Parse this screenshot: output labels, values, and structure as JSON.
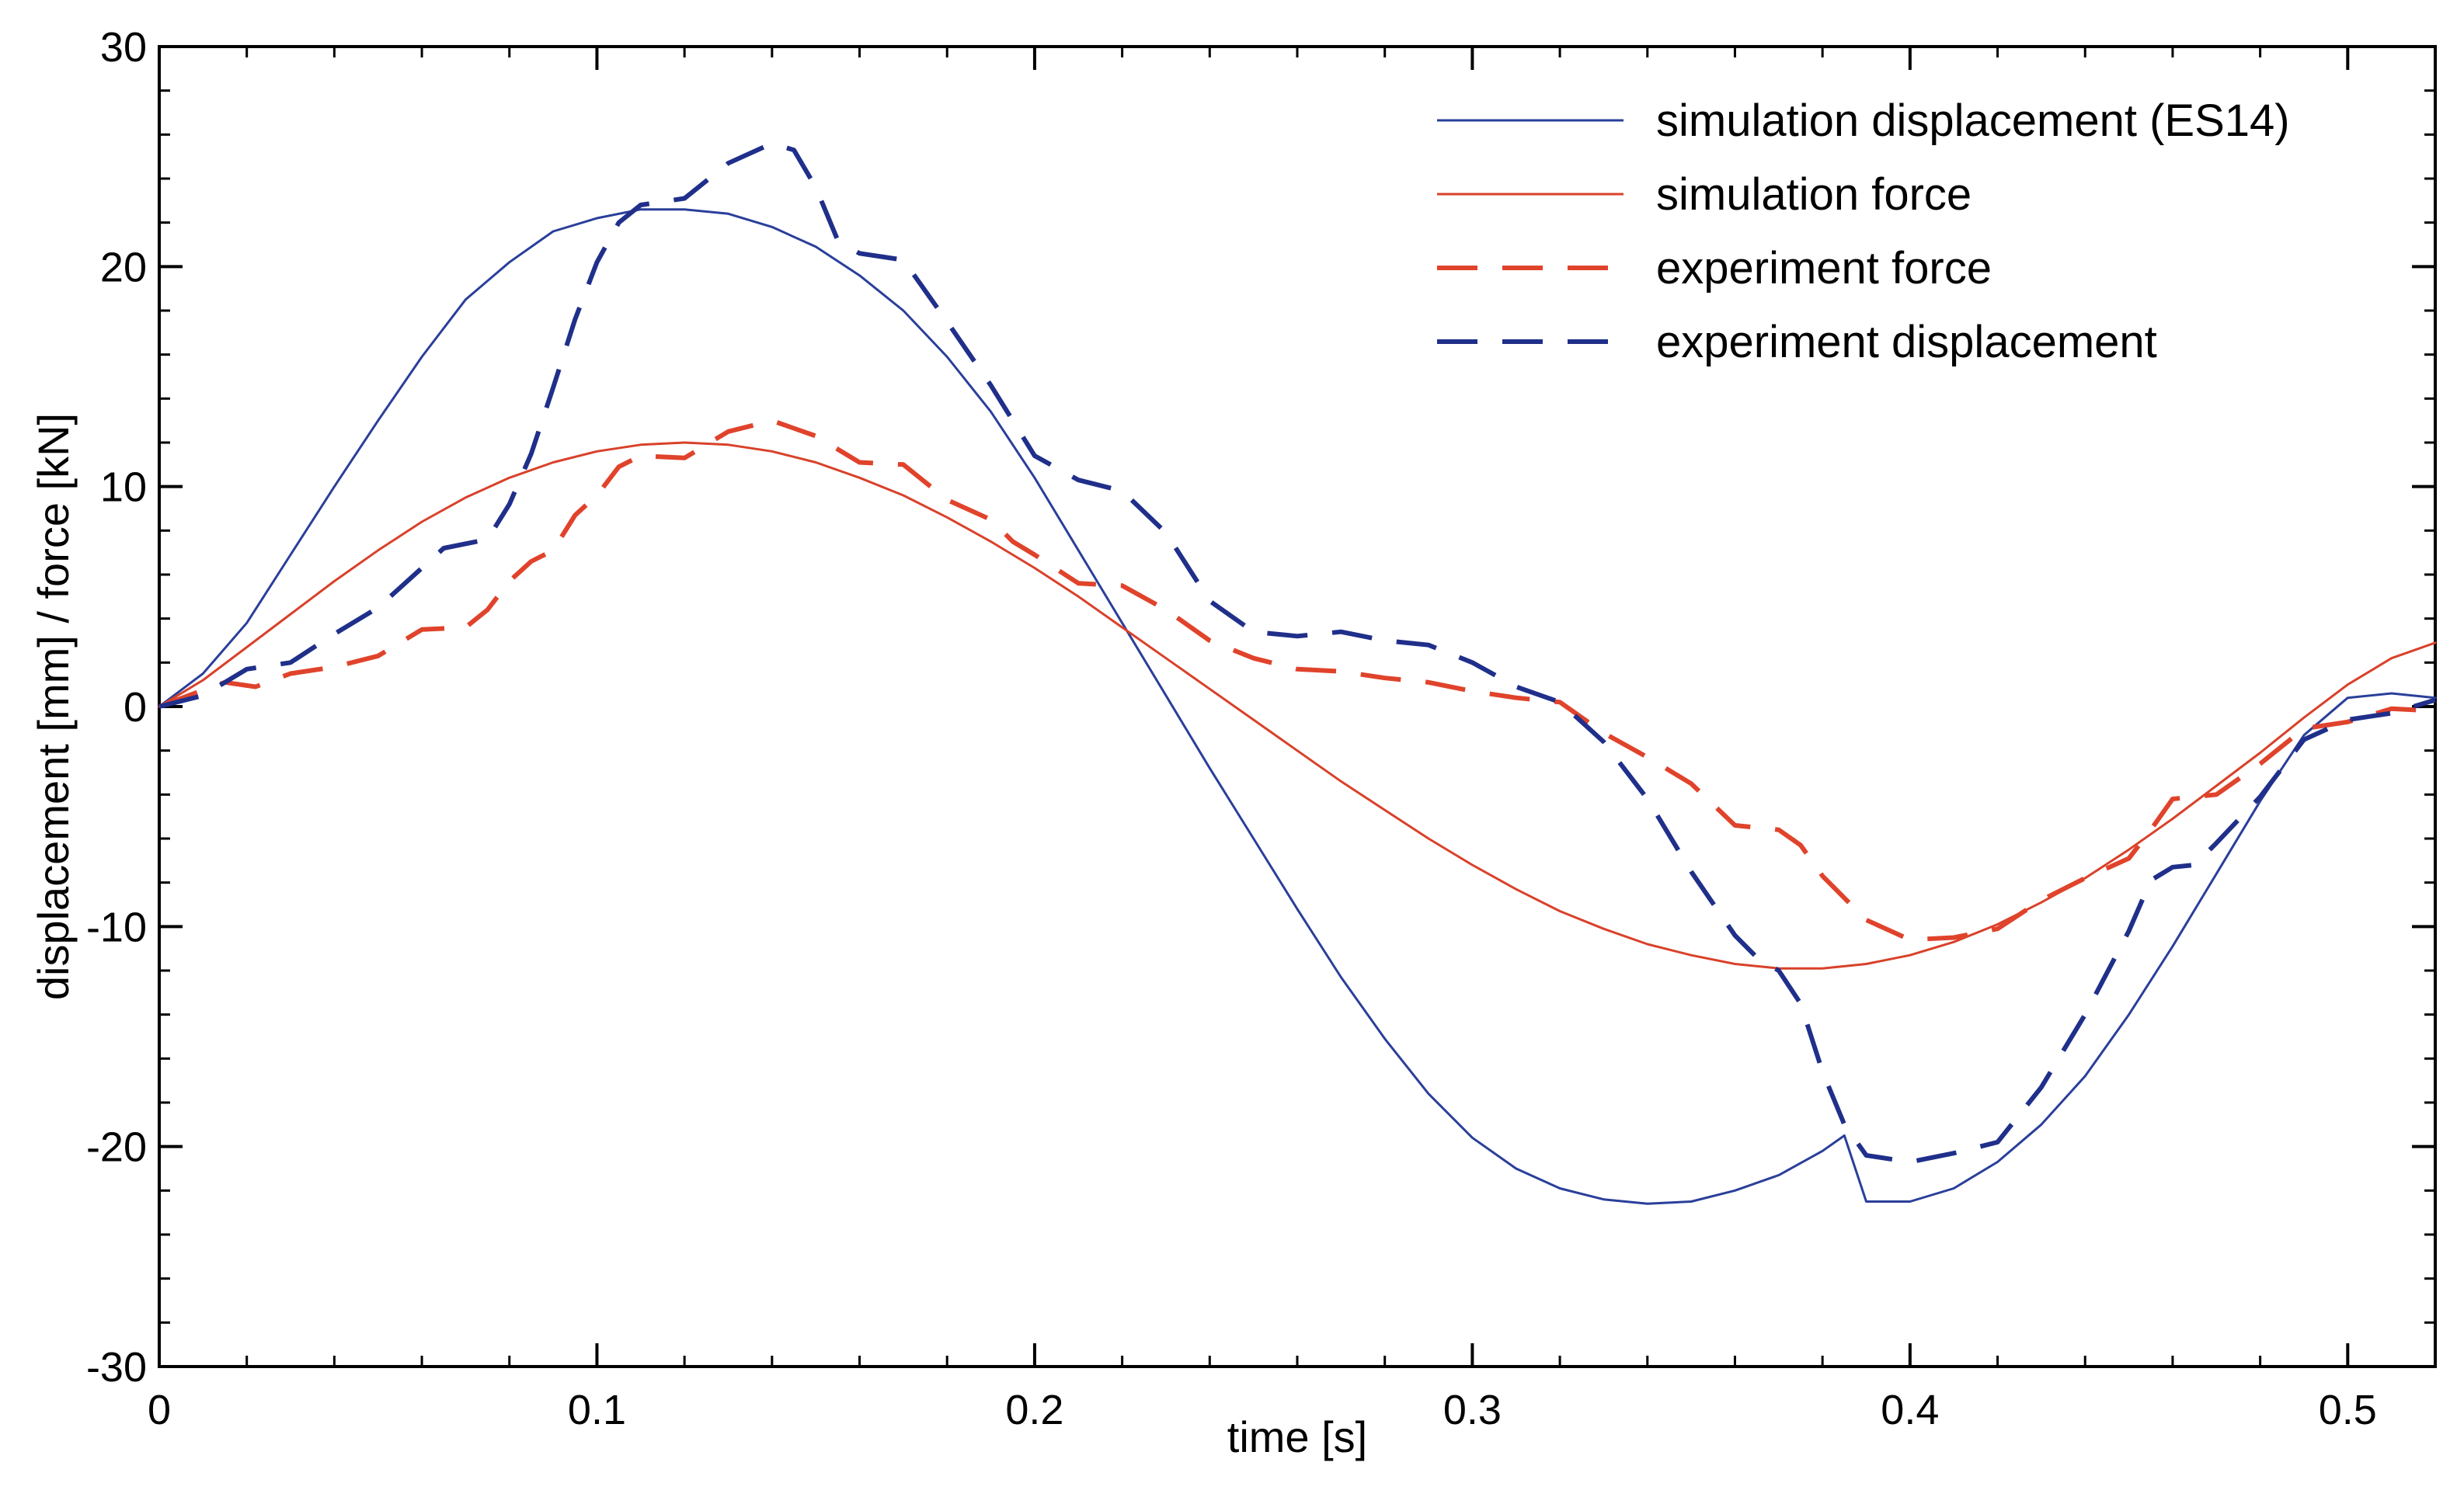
{
  "chart_data": {
    "type": "line",
    "title": "",
    "xlabel": "time [s]",
    "ylabel": "displacement [mm] / force [kN]",
    "xlim": [
      0,
      0.52
    ],
    "ylim": [
      -30,
      30
    ],
    "x_ticks": [
      0,
      0.1,
      0.2,
      0.3,
      0.4,
      0.5
    ],
    "x_tick_labels": [
      "0",
      "0.1",
      "0.2",
      "0.3",
      "0.4",
      "0.5"
    ],
    "y_ticks": [
      -30,
      -20,
      -10,
      0,
      10,
      20,
      30
    ],
    "y_tick_labels": [
      "-30",
      "-20",
      "-10",
      "0",
      "10",
      "20",
      "30"
    ],
    "grid": false,
    "legend_position": "top-right",
    "series": [
      {
        "name": "simulation displacement (ES14)",
        "color": "#2a3f9a",
        "style": "solid",
        "points": [
          [
            0,
            0
          ],
          [
            0.01,
            1.5
          ],
          [
            0.02,
            3.8
          ],
          [
            0.03,
            6.9
          ],
          [
            0.04,
            10.0
          ],
          [
            0.05,
            13.0
          ],
          [
            0.06,
            15.9
          ],
          [
            0.07,
            18.5
          ],
          [
            0.08,
            20.2
          ],
          [
            0.09,
            21.6
          ],
          [
            0.1,
            22.2
          ],
          [
            0.11,
            22.6
          ],
          [
            0.12,
            22.6
          ],
          [
            0.13,
            22.4
          ],
          [
            0.14,
            21.8
          ],
          [
            0.15,
            20.9
          ],
          [
            0.16,
            19.6
          ],
          [
            0.17,
            18.0
          ],
          [
            0.18,
            15.9
          ],
          [
            0.19,
            13.4
          ],
          [
            0.2,
            10.4
          ],
          [
            0.21,
            7.1
          ],
          [
            0.22,
            3.8
          ],
          [
            0.23,
            0.5
          ],
          [
            0.24,
            -2.8
          ],
          [
            0.25,
            -6.0
          ],
          [
            0.26,
            -9.2
          ],
          [
            0.27,
            -12.3
          ],
          [
            0.28,
            -15.1
          ],
          [
            0.29,
            -17.6
          ],
          [
            0.3,
            -19.6
          ],
          [
            0.31,
            -21.0
          ],
          [
            0.32,
            -21.9
          ],
          [
            0.33,
            -22.4
          ],
          [
            0.34,
            -22.6
          ],
          [
            0.35,
            -22.5
          ],
          [
            0.36,
            -22.0
          ],
          [
            0.37,
            -21.3
          ],
          [
            0.38,
            -20.2
          ],
          [
            0.385,
            -19.5
          ],
          [
            0.39,
            -22.5
          ],
          [
            0.4,
            -22.5
          ],
          [
            0.41,
            -21.9
          ],
          [
            0.42,
            -20.7
          ],
          [
            0.43,
            -19.0
          ],
          [
            0.44,
            -16.8
          ],
          [
            0.45,
            -14.0
          ],
          [
            0.46,
            -10.9
          ],
          [
            0.47,
            -7.6
          ],
          [
            0.48,
            -4.3
          ],
          [
            0.49,
            -1.3
          ],
          [
            0.5,
            0.4
          ],
          [
            0.51,
            0.6
          ],
          [
            0.52,
            0.4
          ]
        ]
      },
      {
        "name": "simulation force",
        "color": "#d9412a",
        "style": "solid",
        "points": [
          [
            0,
            0
          ],
          [
            0.01,
            1.2
          ],
          [
            0.02,
            2.7
          ],
          [
            0.03,
            4.2
          ],
          [
            0.04,
            5.7
          ],
          [
            0.05,
            7.1
          ],
          [
            0.06,
            8.4
          ],
          [
            0.07,
            9.5
          ],
          [
            0.08,
            10.4
          ],
          [
            0.09,
            11.1
          ],
          [
            0.1,
            11.6
          ],
          [
            0.11,
            11.9
          ],
          [
            0.12,
            12.0
          ],
          [
            0.13,
            11.9
          ],
          [
            0.14,
            11.6
          ],
          [
            0.15,
            11.1
          ],
          [
            0.16,
            10.4
          ],
          [
            0.17,
            9.6
          ],
          [
            0.18,
            8.6
          ],
          [
            0.19,
            7.5
          ],
          [
            0.2,
            6.3
          ],
          [
            0.21,
            5.0
          ],
          [
            0.22,
            3.6
          ],
          [
            0.23,
            2.2
          ],
          [
            0.24,
            0.8
          ],
          [
            0.25,
            -0.6
          ],
          [
            0.26,
            -2.0
          ],
          [
            0.27,
            -3.4
          ],
          [
            0.28,
            -4.7
          ],
          [
            0.29,
            -6.0
          ],
          [
            0.3,
            -7.2
          ],
          [
            0.31,
            -8.3
          ],
          [
            0.32,
            -9.3
          ],
          [
            0.33,
            -10.1
          ],
          [
            0.34,
            -10.8
          ],
          [
            0.35,
            -11.3
          ],
          [
            0.36,
            -11.7
          ],
          [
            0.37,
            -11.9
          ],
          [
            0.38,
            -11.9
          ],
          [
            0.39,
            -11.7
          ],
          [
            0.4,
            -11.3
          ],
          [
            0.41,
            -10.7
          ],
          [
            0.42,
            -9.9
          ],
          [
            0.43,
            -8.9
          ],
          [
            0.44,
            -7.8
          ],
          [
            0.45,
            -6.5
          ],
          [
            0.46,
            -5.1
          ],
          [
            0.47,
            -3.6
          ],
          [
            0.48,
            -2.1
          ],
          [
            0.49,
            -0.5
          ],
          [
            0.5,
            1.0
          ],
          [
            0.51,
            2.2
          ],
          [
            0.52,
            2.9
          ]
        ]
      },
      {
        "name": "experiment force",
        "color": "#e0432b",
        "style": "dashed",
        "points": [
          [
            0,
            0
          ],
          [
            0.008,
            0.6
          ],
          [
            0.015,
            1.1
          ],
          [
            0.022,
            0.9
          ],
          [
            0.03,
            1.5
          ],
          [
            0.04,
            1.8
          ],
          [
            0.05,
            2.3
          ],
          [
            0.06,
            3.5
          ],
          [
            0.07,
            3.6
          ],
          [
            0.075,
            4.4
          ],
          [
            0.08,
            5.7
          ],
          [
            0.085,
            6.6
          ],
          [
            0.09,
            7.1
          ],
          [
            0.095,
            8.7
          ],
          [
            0.1,
            9.6
          ],
          [
            0.105,
            10.9
          ],
          [
            0.11,
            11.4
          ],
          [
            0.12,
            11.3
          ],
          [
            0.13,
            12.5
          ],
          [
            0.14,
            13.0
          ],
          [
            0.15,
            12.3
          ],
          [
            0.16,
            11.1
          ],
          [
            0.17,
            11.0
          ],
          [
            0.18,
            9.4
          ],
          [
            0.19,
            8.5
          ],
          [
            0.195,
            7.5
          ],
          [
            0.2,
            6.9
          ],
          [
            0.21,
            5.6
          ],
          [
            0.22,
            5.5
          ],
          [
            0.23,
            4.4
          ],
          [
            0.24,
            3.0
          ],
          [
            0.25,
            2.2
          ],
          [
            0.26,
            1.7
          ],
          [
            0.27,
            1.6
          ],
          [
            0.28,
            1.3
          ],
          [
            0.29,
            1.1
          ],
          [
            0.3,
            0.7
          ],
          [
            0.31,
            0.4
          ],
          [
            0.32,
            0.2
          ],
          [
            0.33,
            -1.2
          ],
          [
            0.34,
            -2.3
          ],
          [
            0.35,
            -3.5
          ],
          [
            0.36,
            -5.4
          ],
          [
            0.37,
            -5.6
          ],
          [
            0.375,
            -6.3
          ],
          [
            0.38,
            -7.7
          ],
          [
            0.39,
            -9.7
          ],
          [
            0.4,
            -10.6
          ],
          [
            0.41,
            -10.5
          ],
          [
            0.42,
            -10.1
          ],
          [
            0.43,
            -8.8
          ],
          [
            0.44,
            -7.8
          ],
          [
            0.45,
            -6.9
          ],
          [
            0.455,
            -5.6
          ],
          [
            0.46,
            -4.2
          ],
          [
            0.47,
            -4.0
          ],
          [
            0.48,
            -2.6
          ],
          [
            0.49,
            -1.0
          ],
          [
            0.5,
            -0.7
          ],
          [
            0.51,
            -0.1
          ],
          [
            0.52,
            -0.2
          ]
        ]
      },
      {
        "name": "experiment displacement",
        "color": "#1f2f8a",
        "style": "dashed",
        "points": [
          [
            0,
            0
          ],
          [
            0.01,
            0.5
          ],
          [
            0.02,
            1.7
          ],
          [
            0.03,
            2.0
          ],
          [
            0.04,
            3.3
          ],
          [
            0.05,
            4.5
          ],
          [
            0.06,
            6.3
          ],
          [
            0.065,
            7.2
          ],
          [
            0.075,
            7.6
          ],
          [
            0.08,
            9.2
          ],
          [
            0.085,
            11.5
          ],
          [
            0.09,
            14.5
          ],
          [
            0.095,
            17.6
          ],
          [
            0.1,
            20.2
          ],
          [
            0.105,
            22.0
          ],
          [
            0.11,
            22.8
          ],
          [
            0.12,
            23.1
          ],
          [
            0.13,
            24.7
          ],
          [
            0.14,
            25.6
          ],
          [
            0.145,
            25.3
          ],
          [
            0.15,
            23.6
          ],
          [
            0.155,
            21.2
          ],
          [
            0.16,
            20.6
          ],
          [
            0.17,
            20.3
          ],
          [
            0.18,
            17.5
          ],
          [
            0.19,
            14.6
          ],
          [
            0.2,
            11.4
          ],
          [
            0.21,
            10.3
          ],
          [
            0.22,
            9.8
          ],
          [
            0.23,
            7.9
          ],
          [
            0.24,
            4.8
          ],
          [
            0.25,
            3.4
          ],
          [
            0.26,
            3.2
          ],
          [
            0.27,
            3.4
          ],
          [
            0.28,
            3.0
          ],
          [
            0.29,
            2.8
          ],
          [
            0.3,
            2.0
          ],
          [
            0.31,
            0.9
          ],
          [
            0.32,
            0.2
          ],
          [
            0.33,
            -1.6
          ],
          [
            0.34,
            -4.2
          ],
          [
            0.35,
            -7.5
          ],
          [
            0.36,
            -10.4
          ],
          [
            0.365,
            -11.4
          ],
          [
            0.37,
            -12.0
          ],
          [
            0.375,
            -13.5
          ],
          [
            0.38,
            -16.6
          ],
          [
            0.385,
            -19.0
          ],
          [
            0.39,
            -20.4
          ],
          [
            0.4,
            -20.7
          ],
          [
            0.41,
            -20.3
          ],
          [
            0.42,
            -19.8
          ],
          [
            0.43,
            -17.3
          ],
          [
            0.44,
            -14.0
          ],
          [
            0.45,
            -10.2
          ],
          [
            0.455,
            -7.9
          ],
          [
            0.46,
            -7.3
          ],
          [
            0.465,
            -7.2
          ],
          [
            0.47,
            -6.2
          ],
          [
            0.48,
            -4.1
          ],
          [
            0.49,
            -1.5
          ],
          [
            0.5,
            -0.6
          ],
          [
            0.51,
            -0.3
          ],
          [
            0.52,
            0.3
          ]
        ]
      }
    ]
  }
}
